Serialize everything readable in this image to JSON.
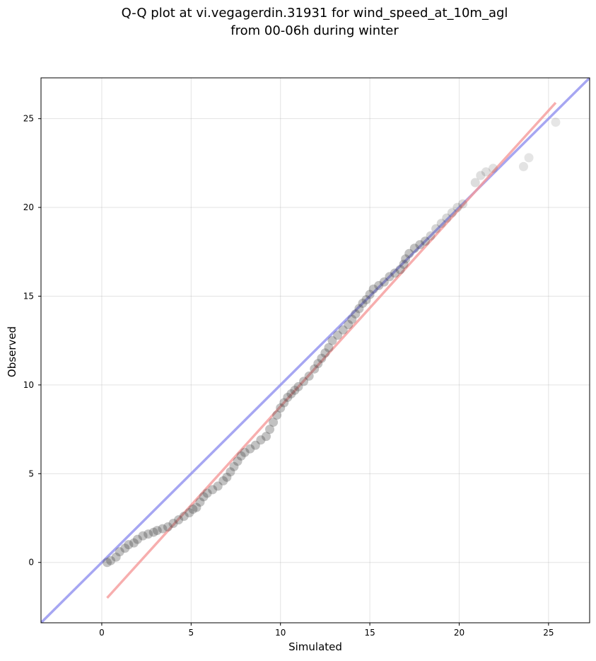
{
  "chart_data": {
    "type": "scatter",
    "title_lines": [
      "Q-Q plot at vi.vegagerdin.31931 for wind_speed_at_10m_agl",
      "from 00-06h during winter"
    ],
    "xlabel": "Simulated",
    "ylabel": "Observed",
    "xlim": [
      -3.4,
      27.3
    ],
    "ylim": [
      -3.4,
      27.3
    ],
    "xticks": [
      0,
      5,
      10,
      15,
      20,
      25
    ],
    "yticks": [
      0,
      5,
      10,
      15,
      20,
      25
    ],
    "grid": true,
    "colors": {
      "points": "#404040",
      "identity_line": "#8888ee",
      "fit_line": "#f59a9a"
    },
    "identity_line": {
      "x": [
        -3.4,
        27.3
      ],
      "y": [
        -3.4,
        27.3
      ]
    },
    "fit_line": {
      "x": [
        0.3,
        25.4
      ],
      "y": [
        -2.0,
        25.9
      ]
    },
    "quantiles": {
      "x": [
        0.3,
        0.5,
        0.8,
        1.0,
        1.3,
        1.5,
        1.8,
        2.0,
        2.3,
        2.6,
        2.9,
        3.1,
        3.4,
        3.7,
        4.0,
        4.3,
        4.6,
        4.9,
        5.1,
        5.3,
        5.5,
        5.7,
        5.9,
        6.2,
        6.5,
        6.8,
        7.0,
        7.2,
        7.4,
        7.6,
        7.8,
        8.0,
        8.3,
        8.6,
        8.9,
        9.2,
        9.4,
        9.6,
        9.8,
        10.0,
        10.2,
        10.4,
        10.6,
        10.8,
        11.0,
        11.3,
        11.6,
        11.9,
        12.1,
        12.3,
        12.5,
        12.7,
        12.9,
        13.2,
        13.5,
        13.8,
        14.0,
        14.2,
        14.4,
        14.6,
        14.8,
        15.0,
        15.2,
        15.5,
        15.8,
        16.1,
        16.4,
        16.7,
        16.9,
        17.0,
        17.2,
        17.5,
        17.8,
        18.1,
        18.4,
        18.7,
        19.0,
        19.3,
        19.6,
        19.9,
        20.2,
        20.9,
        21.2,
        21.5,
        21.9,
        23.6,
        23.9,
        25.4
      ],
      "y": [
        0.0,
        0.1,
        0.3,
        0.6,
        0.8,
        1.0,
        1.1,
        1.3,
        1.5,
        1.6,
        1.7,
        1.8,
        1.9,
        2.0,
        2.2,
        2.4,
        2.6,
        2.8,
        3.0,
        3.1,
        3.4,
        3.7,
        3.9,
        4.1,
        4.3,
        4.6,
        4.8,
        5.1,
        5.4,
        5.7,
        6.0,
        6.2,
        6.4,
        6.6,
        6.9,
        7.1,
        7.5,
        7.9,
        8.3,
        8.7,
        9.0,
        9.3,
        9.5,
        9.7,
        9.9,
        10.2,
        10.5,
        10.9,
        11.2,
        11.5,
        11.8,
        12.1,
        12.5,
        12.8,
        13.1,
        13.4,
        13.7,
        14.0,
        14.3,
        14.6,
        14.8,
        15.1,
        15.4,
        15.6,
        15.8,
        16.1,
        16.3,
        16.5,
        16.8,
        17.1,
        17.4,
        17.7,
        17.9,
        18.1,
        18.4,
        18.8,
        19.1,
        19.4,
        19.7,
        20.0,
        20.2,
        21.4,
        21.8,
        22.0,
        22.2,
        22.3,
        22.8,
        24.8
      ]
    }
  }
}
